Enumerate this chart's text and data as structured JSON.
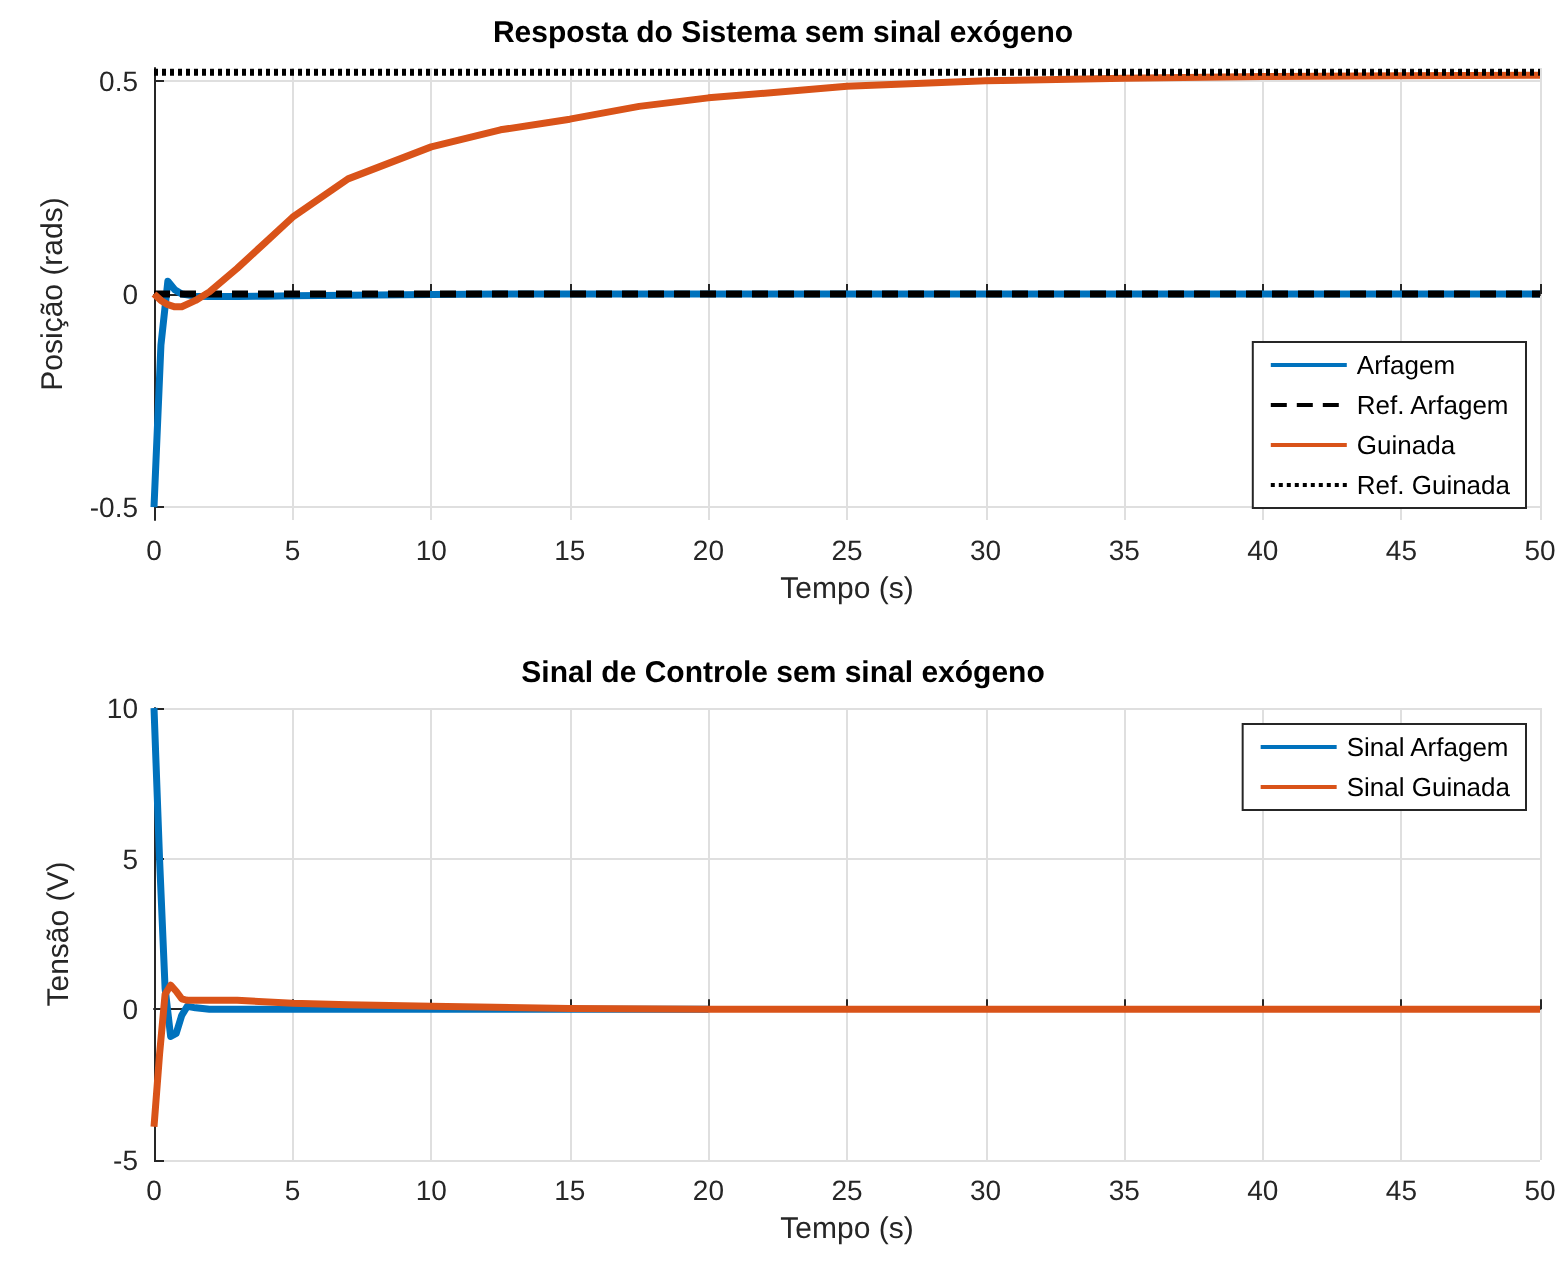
{
  "chart_data": [
    {
      "type": "line",
      "title": "Resposta do Sistema sem sinal exógeno",
      "xlabel": "Tempo (s)",
      "ylabel": "Posição (rads)",
      "x": [
        0,
        0.25,
        0.5,
        0.75,
        1,
        1.5,
        2,
        3,
        4,
        5,
        7,
        10,
        12.5,
        15,
        17.5,
        20,
        25,
        30,
        35,
        40,
        45,
        50
      ],
      "xlim": [
        0,
        50
      ],
      "xticks": [
        0,
        5,
        10,
        15,
        20,
        25,
        30,
        35,
        40,
        45,
        50
      ],
      "ylim": [
        -0.53,
        0.53
      ],
      "yticks": [
        -0.5,
        0,
        0.5
      ],
      "grid": true,
      "legend": "bottom right",
      "series": [
        {
          "name": "Arfagem",
          "color": "#0072bd",
          "line_style": "solid",
          "values": [
            -0.5,
            -0.12,
            0.03,
            0.01,
            0,
            -0.005,
            -0.006,
            -0.006,
            -0.005,
            -0.004,
            -0.003,
            -0.001,
            0,
            0,
            0,
            0,
            0,
            0,
            0,
            0,
            0,
            0
          ]
        },
        {
          "name": "Ref. Arfagem",
          "color": "#000000",
          "line_style": "dashed",
          "values": [
            0,
            0,
            0,
            0,
            0,
            0,
            0,
            0,
            0,
            0,
            0,
            0,
            0,
            0,
            0,
            0,
            0,
            0,
            0,
            0,
            0,
            0
          ]
        },
        {
          "name": "Guinada",
          "color": "#d95319",
          "line_style": "solid",
          "values": [
            0,
            -0.015,
            -0.025,
            -0.03,
            -0.03,
            -0.015,
            0.005,
            0.06,
            0.12,
            0.18,
            0.27,
            0.345,
            0.385,
            0.41,
            0.44,
            0.46,
            0.487,
            0.5,
            0.506,
            0.51,
            0.512,
            0.513
          ]
        },
        {
          "name": "Ref. Guinada",
          "color": "#000000",
          "line_style": "dotted",
          "values": [
            0.52,
            0.52,
            0.52,
            0.52,
            0.52,
            0.52,
            0.52,
            0.52,
            0.52,
            0.52,
            0.52,
            0.52,
            0.52,
            0.52,
            0.52,
            0.52,
            0.52,
            0.52,
            0.52,
            0.52,
            0.52,
            0.52
          ]
        }
      ]
    },
    {
      "type": "line",
      "title": "Sinal de Controle sem sinal exógeno",
      "xlabel": "Tempo (s)",
      "ylabel": "Tensão (V)",
      "x": [
        0,
        0.2,
        0.4,
        0.6,
        0.8,
        1,
        1.2,
        1.5,
        2,
        3,
        5,
        7,
        10,
        15,
        20,
        30,
        40,
        50
      ],
      "xlim": [
        0,
        50
      ],
      "xticks": [
        0,
        5,
        10,
        15,
        20,
        25,
        30,
        35,
        40,
        45,
        50
      ],
      "ylim": [
        -5,
        10
      ],
      "yticks": [
        -5,
        0,
        5,
        10
      ],
      "grid": true,
      "legend": "top right",
      "series": [
        {
          "name": "Sinal Arfagem",
          "color": "#0072bd",
          "line_style": "solid",
          "values": [
            10,
            5,
            0.7,
            -0.9,
            -0.8,
            -0.2,
            0.1,
            0.05,
            0,
            0,
            0,
            0,
            0,
            0,
            0,
            null,
            null,
            null
          ]
        },
        {
          "name": "Sinal Guinada",
          "color": "#d95319",
          "line_style": "solid",
          "values": [
            -3.9,
            -1.5,
            0.5,
            0.8,
            0.6,
            0.35,
            0.3,
            0.3,
            0.3,
            0.3,
            0.2,
            0.15,
            0.1,
            0.03,
            0,
            0,
            0,
            0
          ]
        }
      ]
    }
  ]
}
